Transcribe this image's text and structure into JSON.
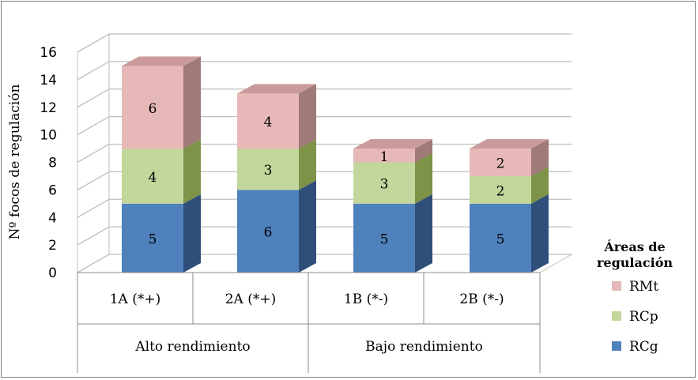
{
  "chart_data": {
    "type": "bar",
    "stacked": true,
    "three_d": true,
    "title": "",
    "ylabel": "Nº focos de regulación",
    "xlabel": "",
    "ylim": [
      0,
      16
    ],
    "yticks": [
      0,
      2,
      4,
      6,
      8,
      10,
      12,
      14,
      16
    ],
    "grid": true,
    "categories": [
      "1A (*+)",
      "2A (*+)",
      "1B (*-)",
      "2B (*-)"
    ],
    "groups": [
      {
        "label": "Alto rendimiento",
        "categories": [
          "1A (*+)",
          "2A (*+)"
        ]
      },
      {
        "label": "Bajo rendimiento",
        "categories": [
          "1B (*-)",
          "2B (*-)"
        ]
      }
    ],
    "series": [
      {
        "name": "RCg",
        "values": [
          5,
          6,
          5,
          5
        ],
        "color": "#4f81bd",
        "side_color": "#2f4f7a",
        "top_color": "#6d95c8"
      },
      {
        "name": "RCp",
        "values": [
          4,
          3,
          3,
          2
        ],
        "color": "#c3d69b",
        "side_color": "#7e9248",
        "top_color": "#d3e2b4"
      },
      {
        "name": "RMt",
        "values": [
          6,
          4,
          1,
          2
        ],
        "color": "#e6b9b8",
        "side_color": "#a07a78",
        "top_color": "#c99a99"
      }
    ],
    "legend": {
      "title": "Áreas de regulación",
      "title_lines": [
        "Áreas de",
        "regulación"
      ],
      "position": "right"
    }
  }
}
